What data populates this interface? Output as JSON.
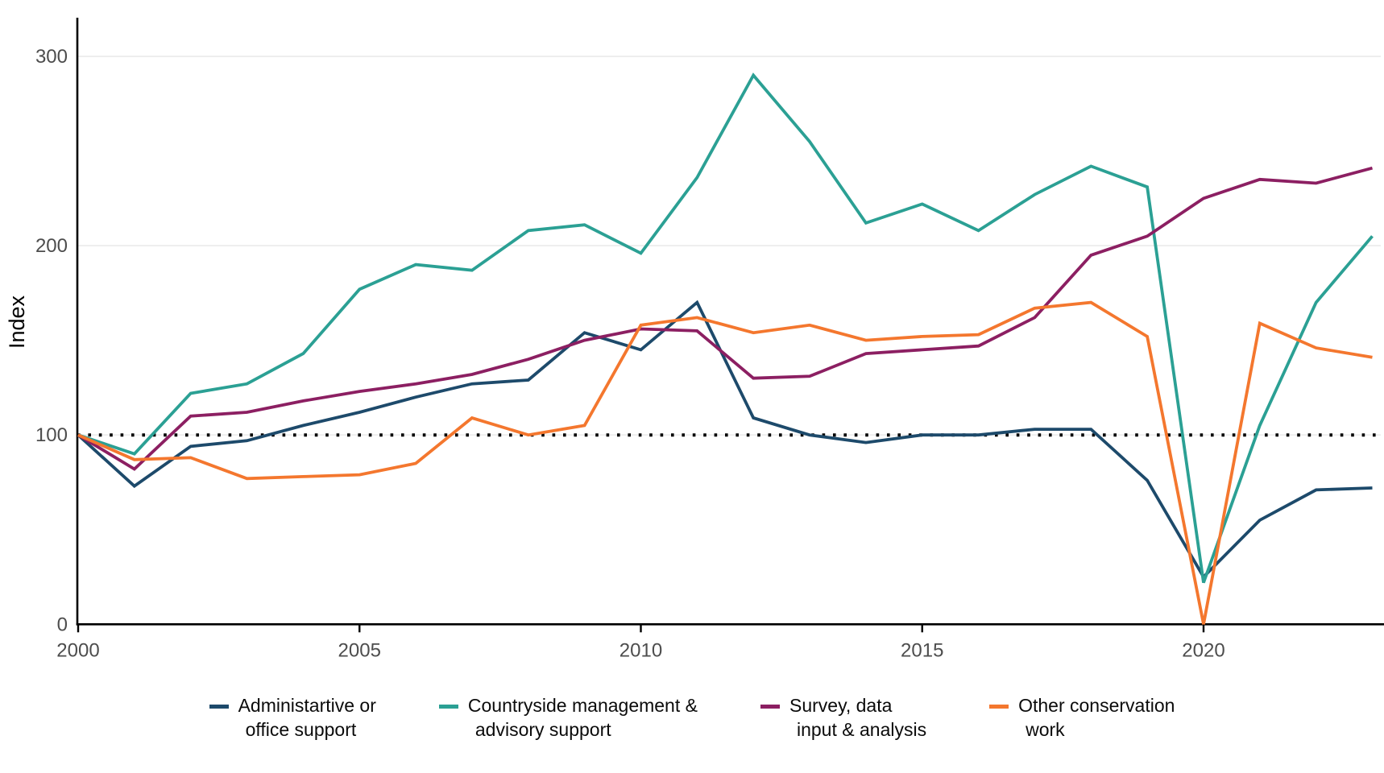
{
  "chart_data": {
    "type": "line",
    "title": "",
    "xlabel": "",
    "ylabel": "Index",
    "x": [
      2000,
      2001,
      2002,
      2003,
      2004,
      2005,
      2006,
      2007,
      2008,
      2009,
      2010,
      2011,
      2012,
      2013,
      2014,
      2015,
      2016,
      2017,
      2018,
      2019,
      2020,
      2021,
      2022,
      2023
    ],
    "x_ticks": [
      2000,
      2005,
      2010,
      2015,
      2020
    ],
    "y_ticks": [
      0,
      100,
      200,
      300
    ],
    "xlim": [
      2000,
      2023
    ],
    "ylim": [
      0,
      320
    ],
    "grid": "horizontal-only",
    "legend_position": "bottom",
    "reference_line": {
      "y": 100,
      "style": "dotted",
      "color": "#000000"
    },
    "axis_color": "#000000",
    "grid_color": "#ececec",
    "tick_label_color": "#4d4d4d",
    "series": [
      {
        "name": "Administartive or office support",
        "legend_lines": [
          "Administartive or",
          "office support"
        ],
        "color": "#1d4a6b",
        "values": [
          100,
          73,
          94,
          97,
          105,
          112,
          120,
          127,
          129,
          154,
          145,
          170,
          109,
          100,
          96,
          100,
          100,
          103,
          103,
          76,
          25,
          55,
          71,
          72
        ]
      },
      {
        "name": "Countryside management & advisory support",
        "legend_lines": [
          "Countryside management &",
          "advisory support"
        ],
        "color": "#2ba094",
        "values": [
          100,
          90,
          122,
          127,
          143,
          177,
          190,
          187,
          208,
          211,
          196,
          236,
          290,
          255,
          212,
          222,
          208,
          227,
          242,
          231,
          22,
          105,
          170,
          205
        ]
      },
      {
        "name": "Survey, data input & analysis",
        "legend_lines": [
          "Survey, data",
          "input & analysis"
        ],
        "color": "#8c1f62",
        "values": [
          100,
          82,
          110,
          112,
          118,
          123,
          127,
          132,
          140,
          150,
          156,
          155,
          130,
          131,
          143,
          145,
          147,
          162,
          195,
          205,
          225,
          235,
          233,
          241
        ]
      },
      {
        "name": "Other conservation work",
        "legend_lines": [
          "Other conservation",
          "work"
        ],
        "color": "#f4772e",
        "values": [
          100,
          87,
          88,
          77,
          78,
          79,
          85,
          109,
          100,
          105,
          158,
          162,
          154,
          158,
          150,
          152,
          153,
          167,
          170,
          152,
          0,
          159,
          146,
          141
        ]
      }
    ]
  }
}
